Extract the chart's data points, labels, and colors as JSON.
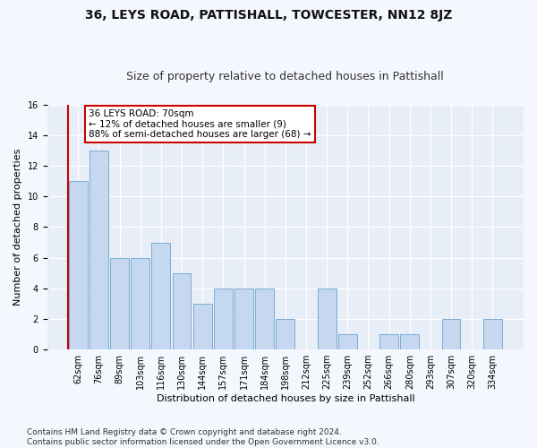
{
  "title": "36, LEYS ROAD, PATTISHALL, TOWCESTER, NN12 8JZ",
  "subtitle": "Size of property relative to detached houses in Pattishall",
  "xlabel": "Distribution of detached houses by size in Pattishall",
  "ylabel": "Number of detached properties",
  "categories": [
    "62sqm",
    "76sqm",
    "89sqm",
    "103sqm",
    "116sqm",
    "130sqm",
    "144sqm",
    "157sqm",
    "171sqm",
    "184sqm",
    "198sqm",
    "212sqm",
    "225sqm",
    "239sqm",
    "252sqm",
    "266sqm",
    "280sqm",
    "293sqm",
    "307sqm",
    "320sqm",
    "334sqm"
  ],
  "values": [
    11,
    13,
    6,
    6,
    7,
    5,
    3,
    4,
    4,
    4,
    2,
    0,
    4,
    1,
    0,
    1,
    1,
    0,
    2,
    0,
    2
  ],
  "bar_color": "#c5d8f0",
  "bar_edge_color": "#7aadd4",
  "annotation_text": "36 LEYS ROAD: 70sqm\n← 12% of detached houses are smaller (9)\n88% of semi-detached houses are larger (68) →",
  "annotation_box_facecolor": "#ffffff",
  "annotation_box_edgecolor": "#cc0000",
  "ylim": [
    0,
    16
  ],
  "yticks": [
    0,
    2,
    4,
    6,
    8,
    10,
    12,
    14,
    16
  ],
  "vline_color": "#cc0000",
  "vline_x": -0.5,
  "footer_line1": "Contains HM Land Registry data © Crown copyright and database right 2024.",
  "footer_line2": "Contains public sector information licensed under the Open Government Licence v3.0.",
  "plot_bg_color": "#e8eef8",
  "fig_bg_color": "#f5f7ff",
  "grid_color": "#ffffff",
  "title_fontsize": 10,
  "subtitle_fontsize": 9,
  "axis_label_fontsize": 8,
  "tick_fontsize": 7,
  "annotation_fontsize": 7.5,
  "footer_fontsize": 6.5
}
